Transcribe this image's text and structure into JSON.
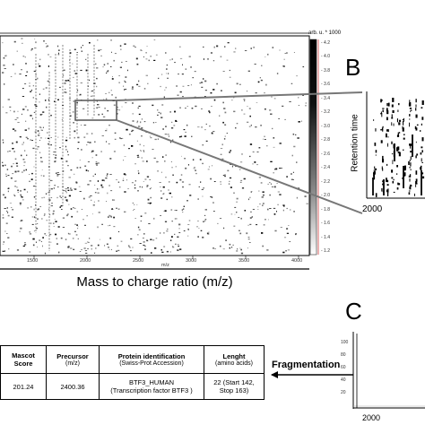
{
  "panel_a": {
    "x_ticks": [
      "1500",
      "2000",
      "2500",
      "3000",
      "3500",
      "4000"
    ],
    "x_unit": "m/z",
    "x_axis_title": "Mass to charge ratio (m/z)",
    "colorbar_unit": "arb. u. * 1000",
    "colorbar_ticks": [
      "4.2",
      "4.0",
      "3.8",
      "3.6",
      "3.4",
      "3.2",
      "3.0",
      "2.8",
      "2.6",
      "2.4",
      "2.2",
      "2.0",
      "1.8",
      "1.6",
      "1.4",
      "1.2"
    ]
  },
  "panel_b": {
    "letter": "B",
    "y_axis_title": "Retention time",
    "x_tick": "2000"
  },
  "panel_c": {
    "letter": "C",
    "y_ticks": [
      "100",
      "80",
      "60",
      "40",
      "20"
    ],
    "x_tick": "2000"
  },
  "arrow_label": "Fragmentation",
  "table": {
    "headers": [
      {
        "main": "Mascot Score",
        "sub": ""
      },
      {
        "main": "Precursor",
        "sub": "(m/z)"
      },
      {
        "main": "Protein identification",
        "sub": "(Swiss-Prot Accession)"
      },
      {
        "main": "Lenght",
        "sub": "(amino acids)"
      }
    ],
    "row": {
      "score": "201.24",
      "precursor": "2400.36",
      "protein_line1": "BTF3_HUMAN",
      "protein_line2": "(Transcription factor BTF3 )",
      "length_line1": "22 (Start 142,",
      "length_line2": "Stop 163)"
    }
  }
}
